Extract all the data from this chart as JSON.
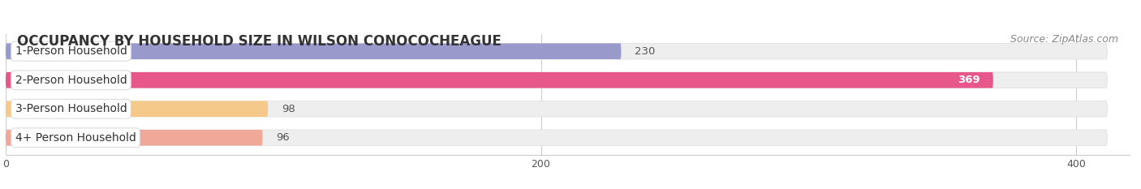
{
  "title": "OCCUPANCY BY HOUSEHOLD SIZE IN WILSON CONOCOCHEAGUE",
  "source": "Source: ZipAtlas.com",
  "categories": [
    "1-Person Household",
    "2-Person Household",
    "3-Person Household",
    "4+ Person Household"
  ],
  "values": [
    230,
    369,
    98,
    96
  ],
  "bar_colors": [
    "#9999cc",
    "#e8578a",
    "#f5c98a",
    "#f0a898"
  ],
  "value_colors": [
    "#333333",
    "#ffffff",
    "#333333",
    "#333333"
  ],
  "xlim": [
    0,
    420
  ],
  "xticks": [
    0,
    200,
    400
  ],
  "background_color": "#ffffff",
  "bar_bg_color": "#eeeeee",
  "title_fontsize": 12,
  "source_fontsize": 9,
  "label_fontsize": 10,
  "value_fontsize": 9.5
}
